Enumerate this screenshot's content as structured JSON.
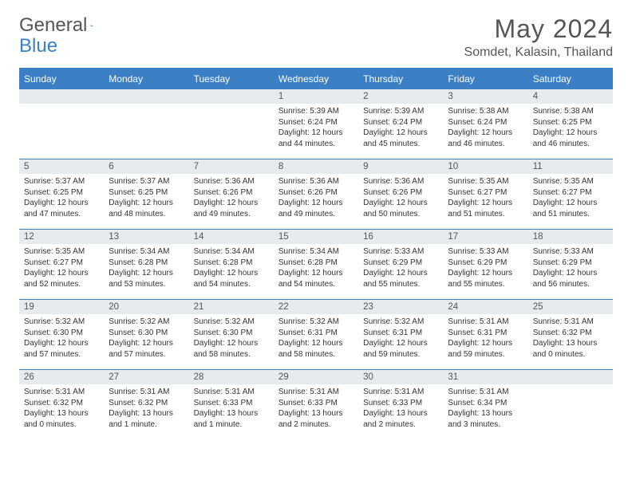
{
  "brand": {
    "part1": "General",
    "part2": "Blue"
  },
  "title": "May 2024",
  "location": "Somdet, Kalasin, Thailand",
  "colors": {
    "header_bg": "#3b7fc4",
    "header_text": "#ffffff",
    "daynum_bg": "#e8ebed",
    "border": "#3b7fc4",
    "text": "#333333",
    "title_text": "#555555"
  },
  "weekdays": [
    "Sunday",
    "Monday",
    "Tuesday",
    "Wednesday",
    "Thursday",
    "Friday",
    "Saturday"
  ],
  "weeks": [
    [
      {
        "n": "",
        "lines": []
      },
      {
        "n": "",
        "lines": []
      },
      {
        "n": "",
        "lines": []
      },
      {
        "n": "1",
        "lines": [
          "Sunrise: 5:39 AM",
          "Sunset: 6:24 PM",
          "Daylight: 12 hours and 44 minutes."
        ]
      },
      {
        "n": "2",
        "lines": [
          "Sunrise: 5:39 AM",
          "Sunset: 6:24 PM",
          "Daylight: 12 hours and 45 minutes."
        ]
      },
      {
        "n": "3",
        "lines": [
          "Sunrise: 5:38 AM",
          "Sunset: 6:24 PM",
          "Daylight: 12 hours and 46 minutes."
        ]
      },
      {
        "n": "4",
        "lines": [
          "Sunrise: 5:38 AM",
          "Sunset: 6:25 PM",
          "Daylight: 12 hours and 46 minutes."
        ]
      }
    ],
    [
      {
        "n": "5",
        "lines": [
          "Sunrise: 5:37 AM",
          "Sunset: 6:25 PM",
          "Daylight: 12 hours and 47 minutes."
        ]
      },
      {
        "n": "6",
        "lines": [
          "Sunrise: 5:37 AM",
          "Sunset: 6:25 PM",
          "Daylight: 12 hours and 48 minutes."
        ]
      },
      {
        "n": "7",
        "lines": [
          "Sunrise: 5:36 AM",
          "Sunset: 6:26 PM",
          "Daylight: 12 hours and 49 minutes."
        ]
      },
      {
        "n": "8",
        "lines": [
          "Sunrise: 5:36 AM",
          "Sunset: 6:26 PM",
          "Daylight: 12 hours and 49 minutes."
        ]
      },
      {
        "n": "9",
        "lines": [
          "Sunrise: 5:36 AM",
          "Sunset: 6:26 PM",
          "Daylight: 12 hours and 50 minutes."
        ]
      },
      {
        "n": "10",
        "lines": [
          "Sunrise: 5:35 AM",
          "Sunset: 6:27 PM",
          "Daylight: 12 hours and 51 minutes."
        ]
      },
      {
        "n": "11",
        "lines": [
          "Sunrise: 5:35 AM",
          "Sunset: 6:27 PM",
          "Daylight: 12 hours and 51 minutes."
        ]
      }
    ],
    [
      {
        "n": "12",
        "lines": [
          "Sunrise: 5:35 AM",
          "Sunset: 6:27 PM",
          "Daylight: 12 hours and 52 minutes."
        ]
      },
      {
        "n": "13",
        "lines": [
          "Sunrise: 5:34 AM",
          "Sunset: 6:28 PM",
          "Daylight: 12 hours and 53 minutes."
        ]
      },
      {
        "n": "14",
        "lines": [
          "Sunrise: 5:34 AM",
          "Sunset: 6:28 PM",
          "Daylight: 12 hours and 54 minutes."
        ]
      },
      {
        "n": "15",
        "lines": [
          "Sunrise: 5:34 AM",
          "Sunset: 6:28 PM",
          "Daylight: 12 hours and 54 minutes."
        ]
      },
      {
        "n": "16",
        "lines": [
          "Sunrise: 5:33 AM",
          "Sunset: 6:29 PM",
          "Daylight: 12 hours and 55 minutes."
        ]
      },
      {
        "n": "17",
        "lines": [
          "Sunrise: 5:33 AM",
          "Sunset: 6:29 PM",
          "Daylight: 12 hours and 55 minutes."
        ]
      },
      {
        "n": "18",
        "lines": [
          "Sunrise: 5:33 AM",
          "Sunset: 6:29 PM",
          "Daylight: 12 hours and 56 minutes."
        ]
      }
    ],
    [
      {
        "n": "19",
        "lines": [
          "Sunrise: 5:32 AM",
          "Sunset: 6:30 PM",
          "Daylight: 12 hours and 57 minutes."
        ]
      },
      {
        "n": "20",
        "lines": [
          "Sunrise: 5:32 AM",
          "Sunset: 6:30 PM",
          "Daylight: 12 hours and 57 minutes."
        ]
      },
      {
        "n": "21",
        "lines": [
          "Sunrise: 5:32 AM",
          "Sunset: 6:30 PM",
          "Daylight: 12 hours and 58 minutes."
        ]
      },
      {
        "n": "22",
        "lines": [
          "Sunrise: 5:32 AM",
          "Sunset: 6:31 PM",
          "Daylight: 12 hours and 58 minutes."
        ]
      },
      {
        "n": "23",
        "lines": [
          "Sunrise: 5:32 AM",
          "Sunset: 6:31 PM",
          "Daylight: 12 hours and 59 minutes."
        ]
      },
      {
        "n": "24",
        "lines": [
          "Sunrise: 5:31 AM",
          "Sunset: 6:31 PM",
          "Daylight: 12 hours and 59 minutes."
        ]
      },
      {
        "n": "25",
        "lines": [
          "Sunrise: 5:31 AM",
          "Sunset: 6:32 PM",
          "Daylight: 13 hours and 0 minutes."
        ]
      }
    ],
    [
      {
        "n": "26",
        "lines": [
          "Sunrise: 5:31 AM",
          "Sunset: 6:32 PM",
          "Daylight: 13 hours and 0 minutes."
        ]
      },
      {
        "n": "27",
        "lines": [
          "Sunrise: 5:31 AM",
          "Sunset: 6:32 PM",
          "Daylight: 13 hours and 1 minute."
        ]
      },
      {
        "n": "28",
        "lines": [
          "Sunrise: 5:31 AM",
          "Sunset: 6:33 PM",
          "Daylight: 13 hours and 1 minute."
        ]
      },
      {
        "n": "29",
        "lines": [
          "Sunrise: 5:31 AM",
          "Sunset: 6:33 PM",
          "Daylight: 13 hours and 2 minutes."
        ]
      },
      {
        "n": "30",
        "lines": [
          "Sunrise: 5:31 AM",
          "Sunset: 6:33 PM",
          "Daylight: 13 hours and 2 minutes."
        ]
      },
      {
        "n": "31",
        "lines": [
          "Sunrise: 5:31 AM",
          "Sunset: 6:34 PM",
          "Daylight: 13 hours and 3 minutes."
        ]
      },
      {
        "n": "",
        "lines": []
      }
    ]
  ]
}
